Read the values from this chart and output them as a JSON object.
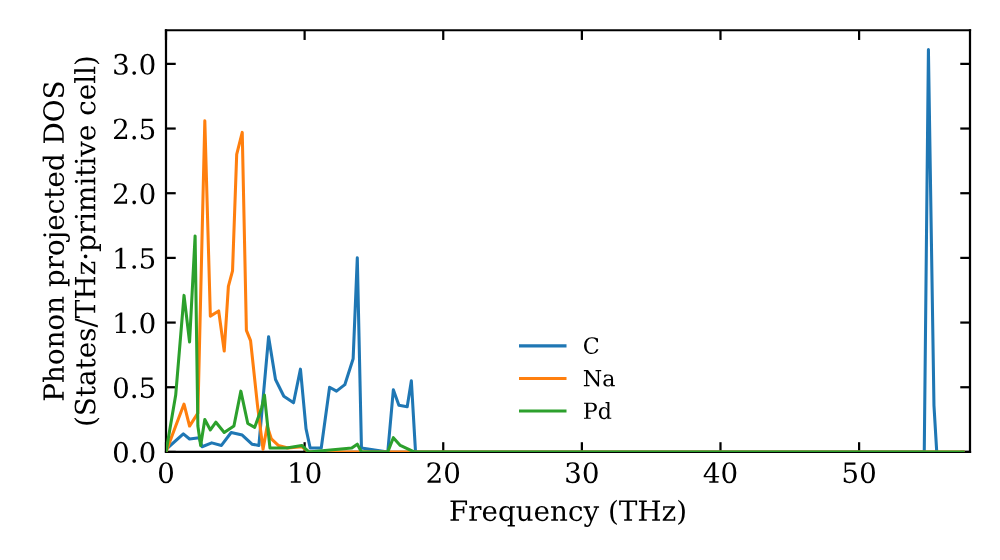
{
  "chart_data": {
    "type": "line",
    "xlabel": "Frequency (THz)",
    "ylabel": "Phonon projected DOS\n(States/THz·primitive cell)",
    "xlim": [
      0,
      58
    ],
    "ylim": [
      0,
      3.26
    ],
    "xticks": [
      0,
      10,
      20,
      30,
      40,
      50
    ],
    "yticks": [
      {
        "value": 0,
        "label": "0.0"
      },
      {
        "value": 0.5,
        "label": "0.5"
      },
      {
        "value": 1,
        "label": "1.0"
      },
      {
        "value": 1.5,
        "label": "1.5"
      },
      {
        "value": 2,
        "label": "2.0"
      },
      {
        "value": 2.5,
        "label": "2.5"
      },
      {
        "value": 3,
        "label": "3.0"
      }
    ],
    "grid": false,
    "legend": "bottom",
    "marker": "none",
    "line_style": "solid",
    "series": [
      {
        "name": "C",
        "color": "#1f77b4",
        "x": [
          0,
          1.25,
          1.7,
          2.4,
          2.6,
          3.3,
          4.0,
          4.7,
          5.5,
          6.2,
          6.7,
          7.4,
          7.9,
          8.5,
          9.2,
          9.7,
          10.1,
          10.4,
          11.2,
          11.8,
          12.3,
          12.9,
          13.5,
          13.8,
          14.1,
          16.0,
          16.4,
          16.8,
          17.4,
          17.7,
          18.0,
          54.7,
          55.0,
          55.4,
          55.6
        ],
        "values": [
          0.02,
          0.14,
          0.1,
          0.11,
          0.04,
          0.07,
          0.05,
          0.15,
          0.13,
          0.06,
          0.05,
          0.89,
          0.56,
          0.43,
          0.38,
          0.64,
          0.18,
          0.03,
          0.03,
          0.5,
          0.47,
          0.52,
          0.72,
          1.5,
          0.03,
          0.0,
          0.48,
          0.36,
          0.35,
          0.55,
          0.0,
          0.0,
          3.11,
          0.36,
          0.0
        ]
      },
      {
        "name": "Na",
        "color": "#ff7f0e",
        "x": [
          0,
          0.7,
          1.3,
          1.7,
          2.3,
          2.8,
          3.2,
          3.8,
          4.2,
          4.5,
          4.8,
          5.1,
          5.5,
          5.8,
          6.1,
          6.6,
          7.0,
          7.3,
          7.6,
          8.1,
          8.8,
          9.8,
          10.3,
          57.5
        ],
        "values": [
          0,
          0.2,
          0.37,
          0.2,
          0.3,
          2.56,
          1.05,
          1.09,
          0.78,
          1.28,
          1.4,
          2.3,
          2.47,
          0.94,
          0.86,
          0.36,
          0.02,
          0.2,
          0.1,
          0.05,
          0.03,
          0.04,
          0,
          0
        ]
      },
      {
        "name": "Pd",
        "color": "#2ca02c",
        "x": [
          0,
          0.7,
          1.3,
          1.7,
          2.1,
          2.3,
          2.5,
          2.8,
          3.2,
          3.6,
          4.2,
          4.9,
          5.4,
          5.9,
          6.4,
          6.9,
          7.1,
          7.5,
          8.7,
          9.8,
          10.3,
          13.4,
          13.8,
          14.1,
          16.0,
          16.4,
          16.9,
          17.9,
          57.5
        ],
        "values": [
          0,
          0.44,
          1.21,
          0.85,
          1.67,
          0.2,
          0.05,
          0.25,
          0.17,
          0.23,
          0.15,
          0.2,
          0.47,
          0.22,
          0.19,
          0.34,
          0.44,
          0.03,
          0.03,
          0.05,
          0,
          0.03,
          0.06,
          0,
          0,
          0.11,
          0.05,
          0,
          0
        ]
      }
    ]
  }
}
